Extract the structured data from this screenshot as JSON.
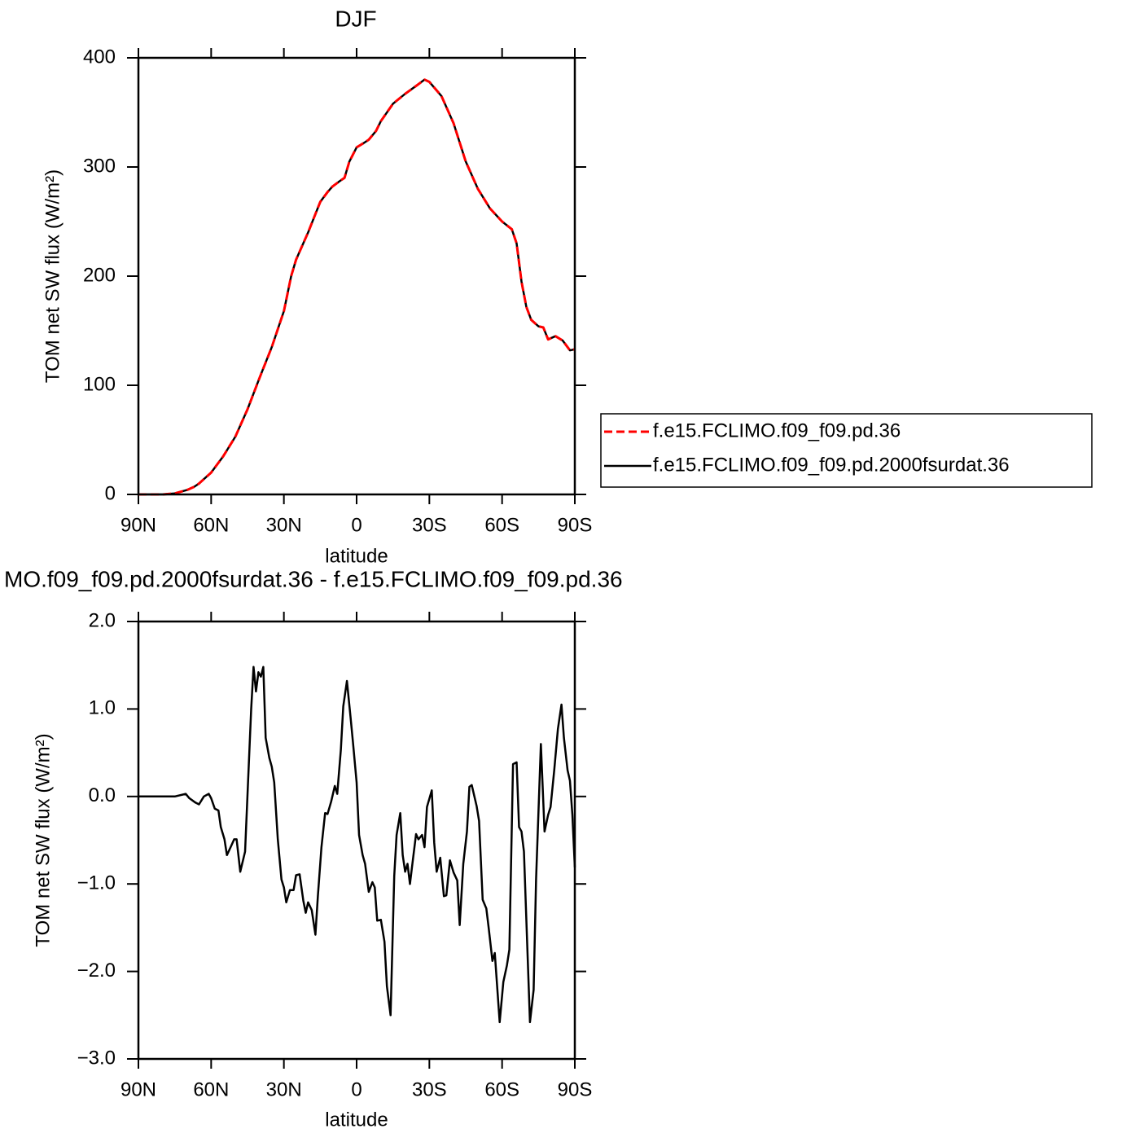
{
  "chart_data": [
    {
      "type": "line",
      "title": "DJF",
      "x_label": "latitude",
      "y_label": "TOM net SW flux (W/m²)",
      "x": [
        90,
        85,
        80,
        75,
        70,
        67,
        65,
        60,
        55,
        50,
        45,
        40,
        35,
        30,
        27,
        25,
        20,
        15,
        12,
        10,
        7,
        5,
        3,
        0,
        -3,
        -5,
        -8,
        -10,
        -15,
        -20,
        -25,
        -28,
        -30,
        -35,
        -40,
        -45,
        -50,
        -55,
        -60,
        -64,
        -66,
        -68,
        -70,
        -72,
        -75,
        -77,
        -79,
        -82,
        -85,
        -88,
        -90
      ],
      "series": [
        {
          "name": "f.e15.FCLIMO.f09_f09.pd.36",
          "color": "#ff0000",
          "dashed": true,
          "values": [
            0,
            0,
            0,
            1,
            4,
            7,
            10,
            20,
            35,
            53,
            78,
            107,
            135,
            168,
            200,
            215,
            240,
            268,
            277,
            282,
            287,
            290,
            305,
            318,
            322,
            325,
            333,
            342,
            358,
            367,
            375,
            380,
            378,
            365,
            340,
            305,
            280,
            262,
            250,
            243,
            230,
            195,
            172,
            160,
            154,
            153,
            142,
            145,
            141,
            132,
            133
          ]
        },
        {
          "name": "f.e15.FCLIMO.f09_f09.pd.2000fsurdat.36",
          "color": "#000000",
          "dashed": false,
          "values": [
            0,
            0,
            0,
            1,
            4,
            7,
            10,
            20,
            35,
            53,
            78,
            107,
            135,
            168,
            200,
            215,
            240,
            268,
            277,
            282,
            287,
            290,
            305,
            318,
            322,
            325,
            333,
            342,
            358,
            367,
            375,
            380,
            378,
            365,
            340,
            305,
            280,
            262,
            250,
            243,
            230,
            195,
            172,
            160,
            154,
            153,
            142,
            145,
            141,
            132,
            133
          ]
        }
      ],
      "xlim": [
        90,
        -90
      ],
      "xticks": [
        {
          "value": 90,
          "label": "90N"
        },
        {
          "value": 60,
          "label": "60N"
        },
        {
          "value": 30,
          "label": "30N"
        },
        0,
        {
          "value": -30,
          "label": "30S"
        },
        {
          "value": -60,
          "label": "60S"
        },
        {
          "value": -90,
          "label": "90S"
        }
      ],
      "ylim": [
        0,
        400
      ],
      "yticks": [
        0,
        100,
        200,
        300,
        400
      ],
      "legend": "right"
    },
    {
      "type": "line",
      "title": "MO.f09_f09.pd.2000fsurdat.36 - f.e15.FCLIMO.f09_f09.pd.36",
      "x_label": "latitude",
      "y_label": "TOM net SW flux (W/m²)",
      "x": [
        90,
        75,
        70.5,
        69,
        66.5,
        65,
        63,
        61,
        60,
        58.5,
        57,
        56,
        54.5,
        53.5,
        52,
        50.5,
        49.5,
        48,
        46,
        44.5,
        43.5,
        42.5,
        41.5,
        40.5,
        39.5,
        38.5,
        37.5,
        36,
        35,
        34,
        32.5,
        31,
        30,
        29,
        27.5,
        26,
        25,
        23.5,
        22,
        21,
        20,
        18.5,
        17,
        16,
        14.5,
        13,
        12,
        10.5,
        9,
        8,
        6.5,
        5.5,
        4,
        2.5,
        1.5,
        0,
        -1,
        -2.5,
        -3.5,
        -5,
        -6.5,
        -7.5,
        -8.5,
        -10,
        -11.5,
        -12.5,
        -14,
        -15.5,
        -16.5,
        -18,
        -19,
        -20,
        -21,
        -22,
        -23,
        -24.5,
        -25.5,
        -27,
        -28,
        -29,
        -31,
        -32,
        -33,
        -34.5,
        -36,
        -37,
        -38.5,
        -40,
        -41.5,
        -42.5,
        -44,
        -45.5,
        -46.5,
        -47.5,
        -49.5,
        -50.5,
        -52,
        -53.5,
        -54.5,
        -56,
        -57,
        -59,
        -60.5,
        -62,
        -63,
        -64.5,
        -66,
        -67,
        -68,
        -69,
        -71.5,
        -73,
        -74,
        -76,
        -77.5,
        -79,
        -80,
        -81.5,
        -83,
        -84.5,
        -85.5,
        -87,
        -88,
        -89,
        -90
      ],
      "values": [
        0,
        0,
        0.03,
        -0.02,
        -0.07,
        -0.09,
        0,
        0.03,
        -0.02,
        -0.14,
        -0.16,
        -0.35,
        -0.49,
        -0.67,
        -0.58,
        -0.49,
        -0.49,
        -0.86,
        -0.63,
        0.35,
        1.0,
        1.48,
        1.2,
        1.42,
        1.37,
        1.48,
        0.67,
        0.44,
        0.34,
        0.16,
        -0.49,
        -0.95,
        -1.04,
        -1.21,
        -1.07,
        -1.07,
        -0.9,
        -0.89,
        -1.19,
        -1.33,
        -1.21,
        -1.3,
        -1.58,
        -1.14,
        -0.58,
        -0.19,
        -0.2,
        -0.06,
        0.12,
        0.03,
        0.53,
        1.03,
        1.32,
        0.9,
        0.62,
        0.16,
        -0.44,
        -0.67,
        -0.77,
        -1.09,
        -0.98,
        -1.04,
        -1.42,
        -1.41,
        -1.66,
        -2.17,
        -2.5,
        -0.91,
        -0.44,
        -0.19,
        -0.67,
        -0.86,
        -0.77,
        -1.0,
        -0.77,
        -0.43,
        -0.49,
        -0.44,
        -0.58,
        -0.12,
        0.07,
        -0.53,
        -0.86,
        -0.7,
        -1.14,
        -1.13,
        -0.73,
        -0.87,
        -0.96,
        -1.47,
        -0.77,
        -0.4,
        0.11,
        0.13,
        -0.11,
        -0.28,
        -1.18,
        -1.28,
        -1.51,
        -1.88,
        -1.79,
        -2.58,
        -2.12,
        -1.93,
        -1.75,
        0.37,
        0.39,
        -0.35,
        -0.4,
        -0.63,
        -2.58,
        -2.21,
        -0.95,
        0.6,
        -0.4,
        -0.21,
        -0.12,
        0.3,
        0.77,
        1.05,
        0.67,
        0.3,
        0.18,
        -0.21,
        -0.81
      ],
      "color": "#000000",
      "xlim": [
        90,
        -90
      ],
      "xticks": [
        {
          "value": 90,
          "label": "90N"
        },
        {
          "value": 60,
          "label": "60N"
        },
        {
          "value": 30,
          "label": "30N"
        },
        0,
        {
          "value": -30,
          "label": "30S"
        },
        {
          "value": -60,
          "label": "60S"
        },
        {
          "value": -90,
          "label": "90S"
        }
      ],
      "ylim": [
        -3,
        2
      ],
      "yticks": [
        {
          "value": 2,
          "label": "2.0"
        },
        {
          "value": 1,
          "label": "1.0"
        },
        {
          "value": 0,
          "label": "0.0"
        },
        {
          "value": -1,
          "label": "−1.0"
        },
        {
          "value": -2,
          "label": "−2.0"
        },
        {
          "value": -3,
          "label": "−3.0"
        }
      ]
    }
  ]
}
